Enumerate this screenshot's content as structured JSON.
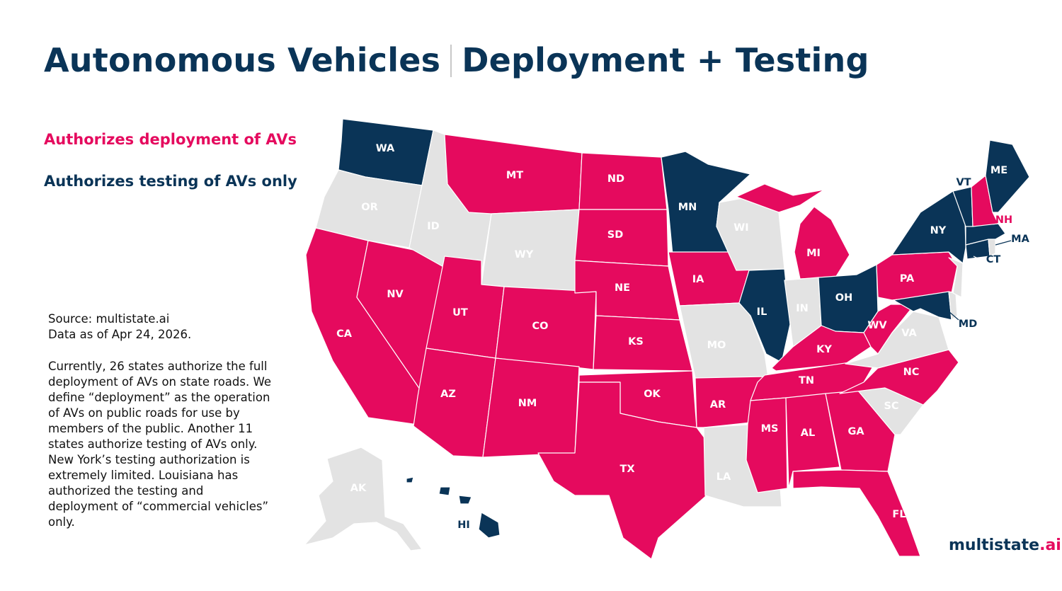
{
  "title": {
    "left": "Autonomous Vehicles",
    "right": "Deployment + Testing"
  },
  "legend": {
    "deploy": "Authorizes deployment of AVs",
    "test": "Authorizes testing of AVs only"
  },
  "colors": {
    "deploy": "#e50a5e",
    "test": "#0a3457",
    "none": "#e3e3e3",
    "label_none": "#ffffff"
  },
  "source": {
    "line1": "Source: multistate.ai",
    "line2": "Data as of Apr 24, 2026."
  },
  "note": "Currently, 26 states authorize the full deployment of AVs on state roads. We define “deployment” as the operation of AVs on public roads for use by members of the public. Another 11 states authorize testing of AVs only. New York’s testing authorization is extremely limited. Louisiana has authorized the testing and deployment of “commercial vehicles” only.",
  "brand": {
    "name": "multistate",
    "tld": ".ai"
  },
  "states": {
    "WA": "test",
    "OR": "none",
    "CA": "deploy",
    "NV": "deploy",
    "ID": "none",
    "MT": "deploy",
    "WY": "none",
    "UT": "deploy",
    "AZ": "deploy",
    "CO": "deploy",
    "NM": "deploy",
    "ND": "deploy",
    "SD": "deploy",
    "NE": "deploy",
    "KS": "deploy",
    "OK": "deploy",
    "TX": "deploy",
    "MN": "test",
    "IA": "deploy",
    "MO": "none",
    "AR": "deploy",
    "LA": "none",
    "WI": "none",
    "IL": "test",
    "MS": "deploy",
    "MI": "deploy",
    "IN": "none",
    "KY": "deploy",
    "TN": "deploy",
    "AL": "deploy",
    "OH": "test",
    "WV": "deploy",
    "VA": "none",
    "NC": "deploy",
    "SC": "none",
    "GA": "deploy",
    "FL": "deploy",
    "PA": "deploy",
    "NY": "test",
    "VT": "test",
    "NH": "deploy",
    "ME": "test",
    "MA": "test",
    "RI": "none",
    "CT": "test",
    "NJ": "none",
    "DE": "none",
    "MD": "test",
    "AK": "none",
    "HI": "test"
  }
}
